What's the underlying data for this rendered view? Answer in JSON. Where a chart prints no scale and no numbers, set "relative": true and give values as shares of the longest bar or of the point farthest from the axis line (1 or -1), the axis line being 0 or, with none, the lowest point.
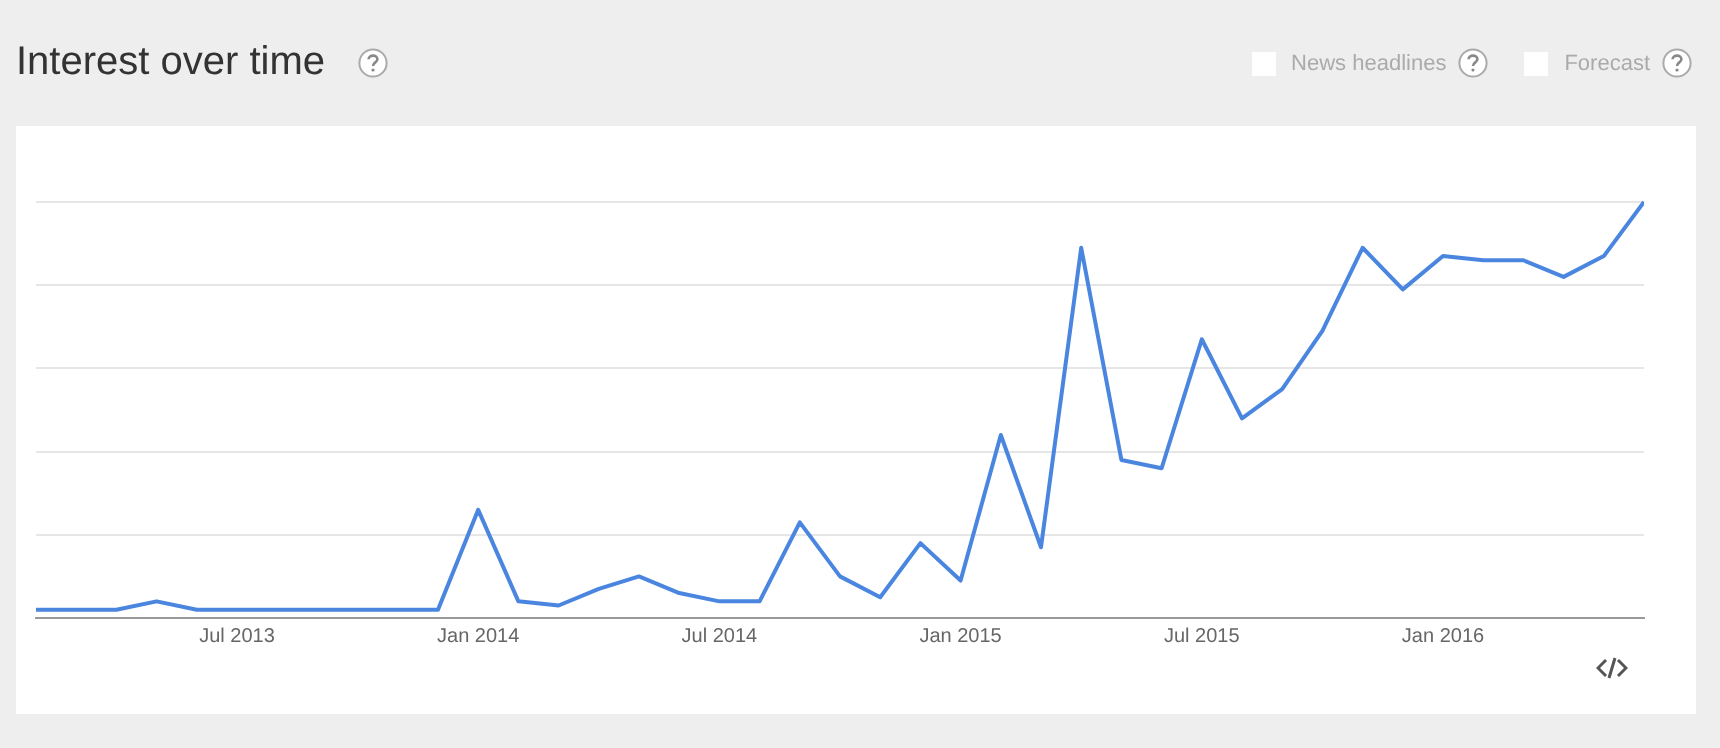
{
  "chart_data": {
    "type": "line",
    "title": "Interest over time",
    "relative": true,
    "grid": "y",
    "legend": false,
    "marker": "none",
    "line_style": "solid",
    "annotations": [
      "News headlines",
      "Forecast"
    ],
    "x": [
      "2013-02",
      "2013-03",
      "2013-04",
      "2013-05",
      "2013-06",
      "2013-07",
      "2013-08",
      "2013-09",
      "2013-10",
      "2013-11",
      "2013-12",
      "2014-01",
      "2014-02",
      "2014-03",
      "2014-04",
      "2014-05",
      "2014-06",
      "2014-07",
      "2014-08",
      "2014-09",
      "2014-10",
      "2014-11",
      "2014-12",
      "2015-01",
      "2015-02",
      "2015-03",
      "2015-04",
      "2015-05",
      "2015-06",
      "2015-07",
      "2015-08",
      "2015-09",
      "2015-10",
      "2015-11",
      "2015-12",
      "2016-01",
      "2016-02",
      "2016-03",
      "2016-04",
      "2016-05",
      "2016-06"
    ],
    "xlim": [
      "2013-02",
      "2016-06"
    ],
    "xticks": [
      {
        "value": "2013-07",
        "label": "Jul 2013"
      },
      {
        "value": "2014-01",
        "label": "Jan 2014"
      },
      {
        "value": "2014-07",
        "label": "Jul 2014"
      },
      {
        "value": "2015-01",
        "label": "Jan 2015"
      },
      {
        "value": "2015-07",
        "label": "Jul 2015"
      },
      {
        "value": "2016-01",
        "label": "Jan 2016"
      }
    ],
    "series": [
      {
        "color": "#4a86e0",
        "values": [
          0.02,
          0.02,
          0.02,
          0.04,
          0.02,
          0.02,
          0.02,
          0.02,
          0.02,
          0.02,
          0.02,
          0.26,
          0.04,
          0.03,
          0.07,
          0.1,
          0.06,
          0.04,
          0.04,
          0.23,
          0.1,
          0.05,
          0.18,
          0.09,
          0.44,
          0.17,
          0.89,
          0.38,
          0.36,
          0.67,
          0.48,
          0.55,
          0.69,
          0.89,
          0.79,
          0.87,
          0.86,
          0.86,
          0.82,
          0.87,
          1
        ]
      }
    ]
  }
}
